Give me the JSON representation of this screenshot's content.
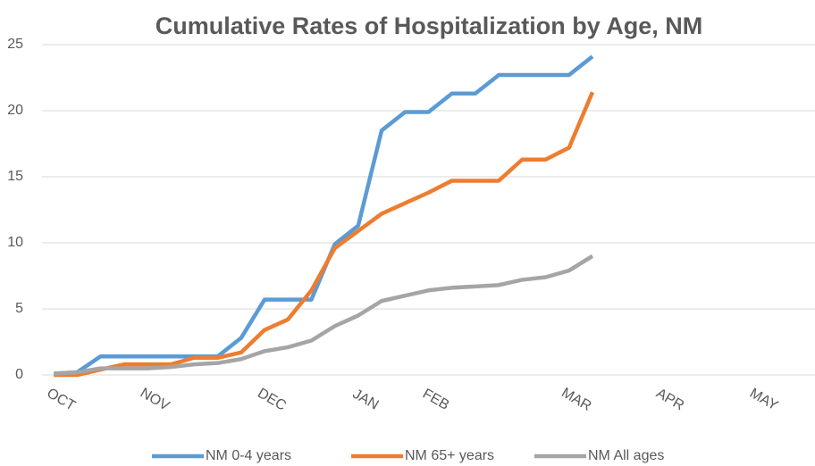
{
  "chart_data": {
    "type": "line",
    "title": "Cumulative Rates of Hospitalization by Age, NM",
    "categories": [
      "OCT",
      null,
      null,
      null,
      "NOV",
      null,
      null,
      null,
      null,
      "DEC",
      null,
      null,
      null,
      "JAN",
      null,
      null,
      "FEB",
      null,
      null,
      null,
      null,
      null,
      "MAR",
      null,
      null,
      null,
      "APR",
      null,
      null,
      null,
      "MAY",
      null,
      null
    ],
    "series": [
      {
        "name": "NM 0-4 years",
        "color": "#5b9bd5",
        "values": [
          0.1,
          0.2,
          1.4,
          1.4,
          1.4,
          1.4,
          1.4,
          1.4,
          2.8,
          5.7,
          5.7,
          5.7,
          9.9,
          11.3,
          18.5,
          19.9,
          19.9,
          21.3,
          21.3,
          22.7,
          22.7,
          22.7,
          22.7,
          24.1,
          null,
          null,
          null,
          null,
          null,
          null,
          null,
          null,
          null
        ]
      },
      {
        "name": "NM 65+ years",
        "color": "#ed7d31",
        "values": [
          0,
          0,
          0.4,
          0.8,
          0.8,
          0.8,
          1.3,
          1.3,
          1.7,
          3.4,
          4.2,
          6.4,
          9.6,
          10.9,
          12.2,
          13.0,
          13.8,
          14.7,
          14.7,
          14.7,
          16.3,
          16.3,
          17.2,
          21.4,
          null,
          null,
          null,
          null,
          null,
          null,
          null,
          null,
          null
        ]
      },
      {
        "name": "NM All ages",
        "color": "#a5a5a5",
        "values": [
          0.1,
          0.2,
          0.5,
          0.5,
          0.5,
          0.6,
          0.8,
          0.9,
          1.2,
          1.8,
          2.1,
          2.6,
          3.7,
          4.5,
          5.6,
          6.0,
          6.4,
          6.6,
          6.7,
          6.8,
          7.2,
          7.4,
          7.9,
          9.0,
          null,
          null,
          null,
          null,
          null,
          null,
          null,
          null,
          null
        ]
      }
    ],
    "ylim": [
      0,
      25
    ],
    "yticks": [
      0,
      5,
      10,
      15,
      20,
      25
    ],
    "grid": true,
    "legend": "bottom"
  }
}
